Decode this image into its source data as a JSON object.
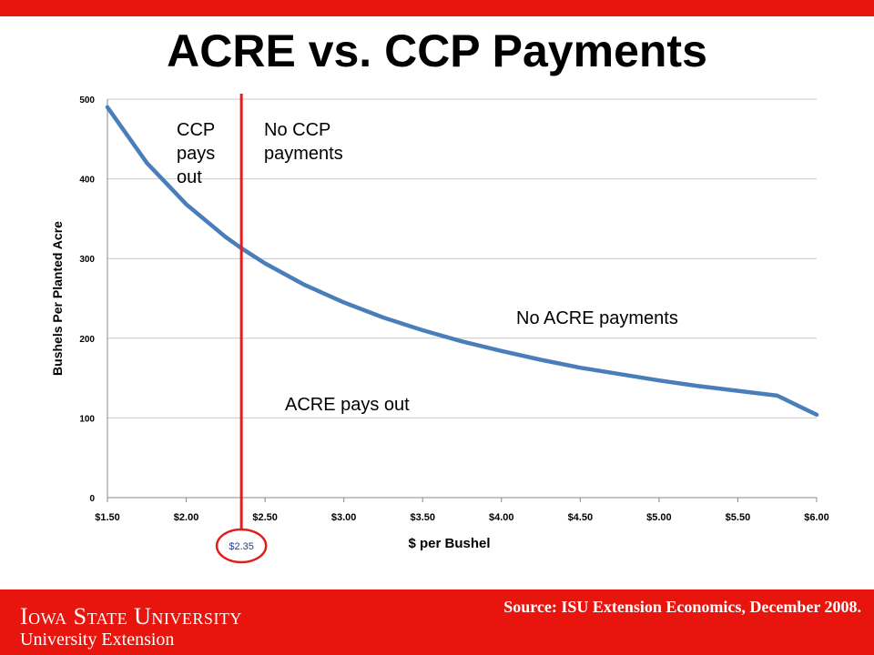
{
  "slide": {
    "title": "ACRE vs. CCP Payments",
    "source": "Source:  ISU Extension Economics, December 2008.",
    "logo_line1": "Iowa State University",
    "logo_line2": "University Extension"
  },
  "colors": {
    "accent_red": "#e8150f",
    "curve_blue": "#4a7ebb",
    "vline_red": "#e11e1e",
    "grid": "#c8c8c8"
  },
  "annotations": {
    "ccp_pays_out": "CCP\npays\nout",
    "no_ccp": "No CCP\npayments",
    "no_acre": "No ACRE payments",
    "acre_pays_out": "ACRE pays out"
  },
  "chart_data": {
    "type": "line",
    "xlabel": "$ per Bushel",
    "ylabel": "Bushels Per Planted Acre",
    "xlim": [
      1.5,
      6.0
    ],
    "ylim": [
      0,
      500
    ],
    "x_ticks": [
      1.5,
      2.0,
      2.5,
      3.0,
      3.5,
      4.0,
      4.5,
      5.0,
      5.5,
      6.0
    ],
    "x_tick_labels": [
      "$1.50",
      "$2.00",
      "$2.50",
      "$3.00",
      "$3.50",
      "$4.00",
      "$4.50",
      "$5.00",
      "$5.50",
      "$6.00"
    ],
    "y_ticks": [
      0,
      100,
      200,
      300,
      400,
      500
    ],
    "y_tick_labels": [
      "0",
      "100",
      "200",
      "300",
      "400",
      "500"
    ],
    "grid": true,
    "series": [
      {
        "x": [
          1.5,
          1.75,
          2.0,
          2.25,
          2.35,
          2.5,
          2.75,
          3.0,
          3.25,
          3.5,
          3.75,
          4.0,
          4.25,
          4.5,
          4.75,
          5.0,
          5.25,
          5.5,
          5.75,
          6.0
        ],
        "values": [
          490,
          420,
          368,
          327,
          313,
          294,
          267,
          245,
          226,
          210,
          196,
          184,
          173,
          163,
          155,
          147,
          140,
          134,
          128,
          104
        ]
      }
    ],
    "vertical_line": {
      "x": 2.35,
      "label": "$2.35"
    }
  }
}
